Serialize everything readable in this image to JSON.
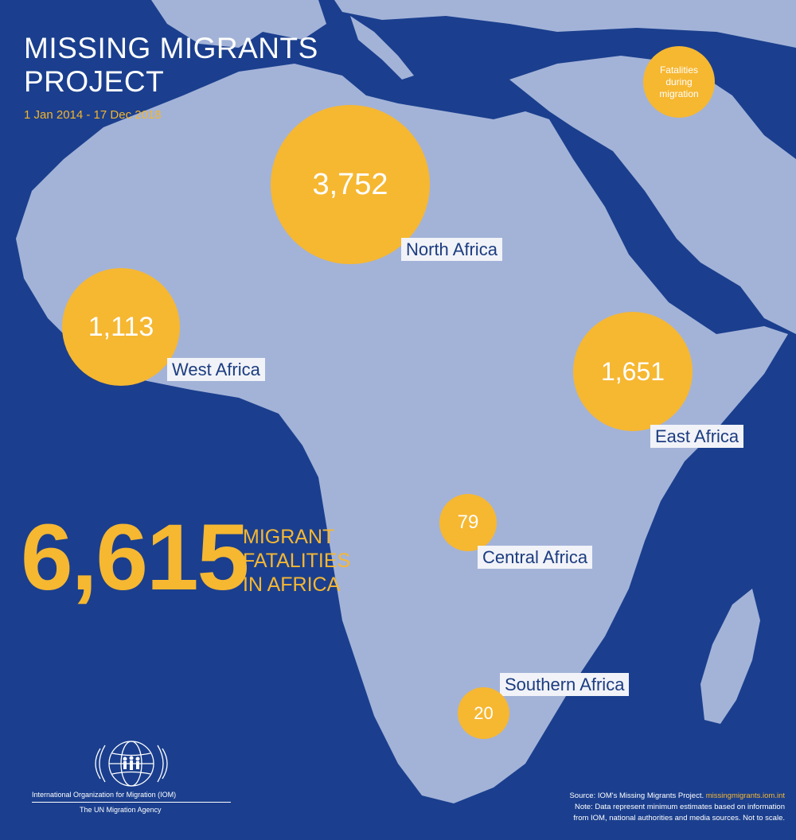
{
  "title": {
    "line1": "MISSING MIGRANTS",
    "line2": "PROJECT"
  },
  "date_range": "1 Jan 2014 - 17 Dec 2018",
  "legend": {
    "line1": "Fatalities",
    "line2": "during",
    "line3": "migration"
  },
  "regions": [
    {
      "name": "North Africa",
      "value": "3,752"
    },
    {
      "name": "West Africa",
      "value": "1,113"
    },
    {
      "name": "East Africa",
      "value": "1,651"
    },
    {
      "name": "Central Africa",
      "value": "79"
    },
    {
      "name": "Southern Africa",
      "value": "20"
    }
  ],
  "total": {
    "value": "6,615",
    "line1": "MIGRANT",
    "line2": "FATALITIES",
    "line3": "IN AFRICA"
  },
  "organization": {
    "name": "International Organization for Migration (IOM)",
    "agency": "The UN Migration Agency"
  },
  "source": {
    "prefix": "Source: IOM's Missing Migrants Project. ",
    "url": "missingmigrants.iom.int",
    "note1": "Note: Data represent minimum estimates based on information",
    "note2": "from IOM, national authorities and media sources. Not to scale."
  },
  "colors": {
    "ocean": "#1b3f8e",
    "land": "#a3b3d8",
    "bubble": "#f6b731",
    "label_bg": "#f1f3f8",
    "label_text": "#1c3c80"
  }
}
